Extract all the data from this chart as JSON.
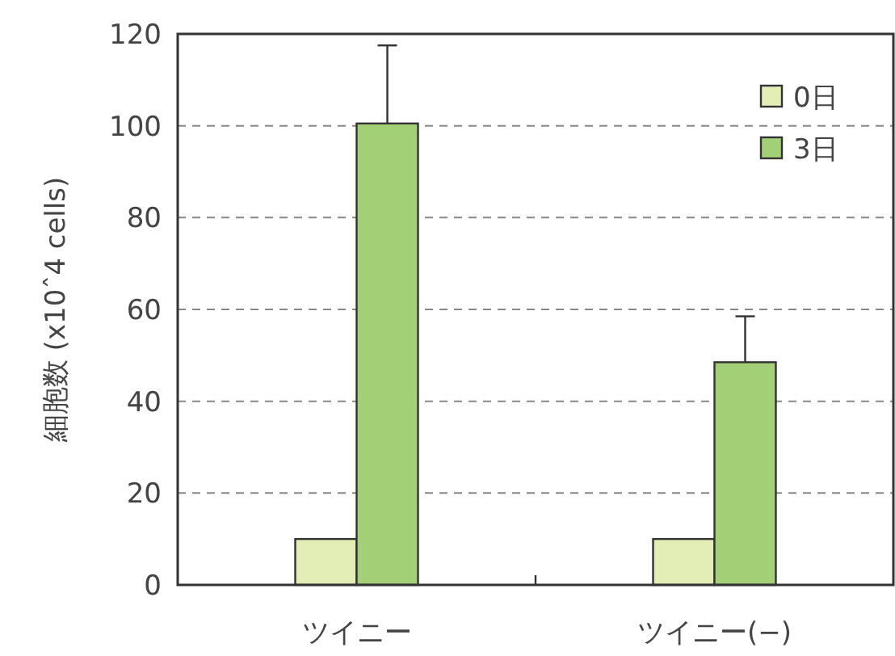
{
  "chart_data": {
    "type": "bar",
    "ylabel": "細胞数 (x10ˆ4 cells)",
    "categories": [
      "ツイニー",
      "ツイニー(−)"
    ],
    "series": [
      {
        "name": "0日",
        "color": "#e3eeb6",
        "values": [
          10,
          10
        ]
      },
      {
        "name": "3日",
        "color": "#a3d077",
        "values": [
          100.5,
          48.5
        ],
        "errors": [
          [
            100.5,
            117.5
          ],
          [
            48.5,
            58.5
          ]
        ]
      }
    ],
    "ylim": [
      0,
      120
    ],
    "yticks": [
      0,
      20,
      40,
      60,
      80,
      100,
      120
    ],
    "grid": "y",
    "legend": "top right"
  }
}
